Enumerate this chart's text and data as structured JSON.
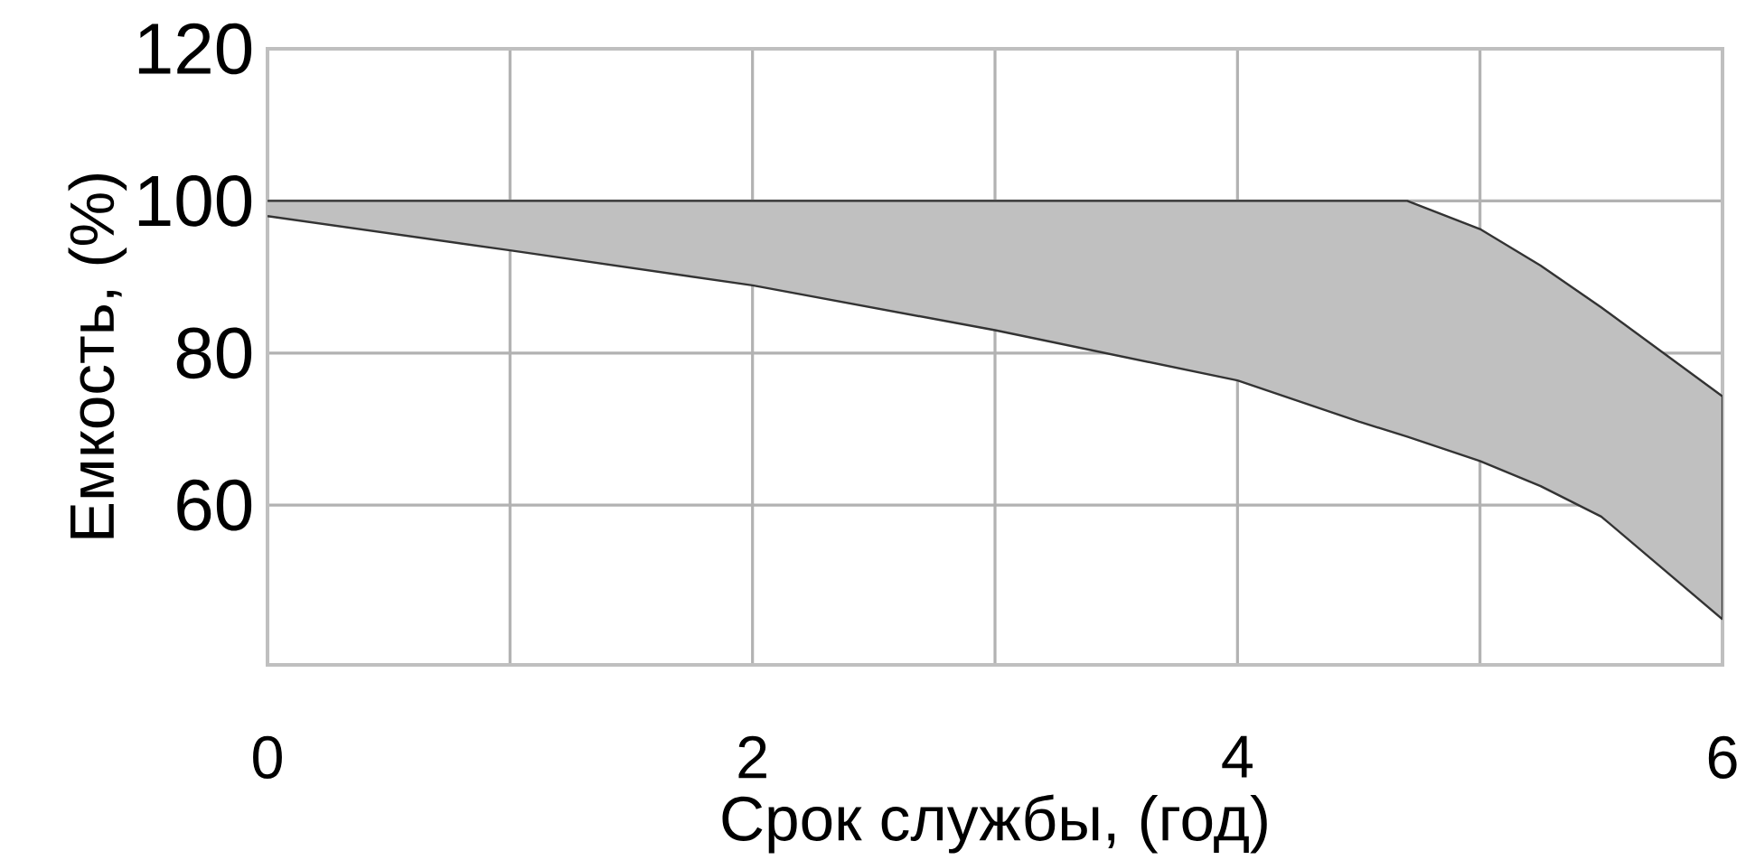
{
  "chart_data": {
    "type": "area",
    "xlabel": "Срок службы, (год)",
    "ylabel": "Емкость, (%)",
    "xlim": [
      0,
      6
    ],
    "ylim": [
      39,
      120
    ],
    "xticks": [
      0,
      {
        "value": 1,
        "label": null
      },
      2,
      {
        "value": 3,
        "label": null
      },
      4,
      {
        "value": 5,
        "label": null
      },
      6
    ],
    "yticks": [
      60,
      80,
      100,
      120
    ],
    "grid": true,
    "series": [
      {
        "color": "#c0c0c0",
        "x": [
          0,
          1,
          2,
          3,
          4,
          4.5,
          4.7,
          5,
          5.25,
          5.5,
          6
        ],
        "values": [
          100,
          100,
          100,
          100,
          100,
          100,
          100,
          96.3,
          91.5,
          86,
          74.3
        ]
      },
      {
        "type": "line",
        "color": "#333333",
        "x": [
          0,
          1,
          2,
          3,
          4,
          4.5,
          4.7,
          5,
          5.25,
          5.5,
          6
        ],
        "values": [
          98,
          93.5,
          88.9,
          83,
          76.4,
          71,
          69,
          65.8,
          62.5,
          58.5,
          45
        ]
      }
    ]
  }
}
